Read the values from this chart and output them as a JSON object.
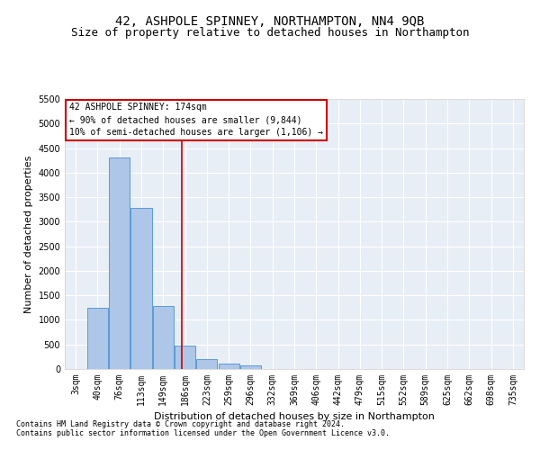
{
  "title": "42, ASHPOLE SPINNEY, NORTHAMPTON, NN4 9QB",
  "subtitle": "Size of property relative to detached houses in Northampton",
  "xlabel": "Distribution of detached houses by size in Northampton",
  "ylabel": "Number of detached properties",
  "footnote1": "Contains HM Land Registry data © Crown copyright and database right 2024.",
  "footnote2": "Contains public sector information licensed under the Open Government Licence v3.0.",
  "bin_labels": [
    "3sqm",
    "40sqm",
    "76sqm",
    "113sqm",
    "149sqm",
    "186sqm",
    "223sqm",
    "259sqm",
    "296sqm",
    "332sqm",
    "369sqm",
    "406sqm",
    "442sqm",
    "479sqm",
    "515sqm",
    "552sqm",
    "589sqm",
    "625sqm",
    "662sqm",
    "698sqm",
    "735sqm"
  ],
  "bar_values": [
    0,
    1250,
    4300,
    3280,
    1280,
    480,
    210,
    110,
    80,
    0,
    0,
    0,
    0,
    0,
    0,
    0,
    0,
    0,
    0,
    0,
    0
  ],
  "bar_color": "#aec6e8",
  "bar_edge_color": "#5b9bd5",
  "vline_x": 4.86,
  "vline_color": "#cc0000",
  "annotation_line1": "42 ASHPOLE SPINNEY: 174sqm",
  "annotation_line2": "← 90% of detached houses are smaller (9,844)",
  "annotation_line3": "10% of semi-detached houses are larger (1,106) →",
  "ylim": [
    0,
    5500
  ],
  "yticks": [
    0,
    500,
    1000,
    1500,
    2000,
    2500,
    3000,
    3500,
    4000,
    4500,
    5000,
    5500
  ],
  "bg_color": "#e8eef5",
  "title_fontsize": 10,
  "subtitle_fontsize": 9,
  "axis_label_fontsize": 8,
  "tick_fontsize": 7,
  "annot_fontsize": 7,
  "footnote_fontsize": 6
}
